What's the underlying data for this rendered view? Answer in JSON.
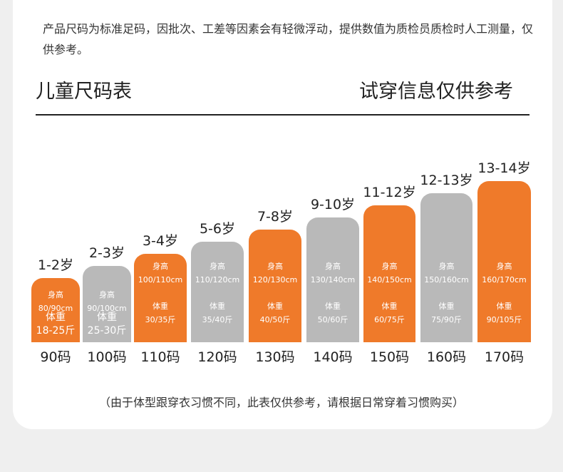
{
  "note": "产品尺码为标准足码，因批次、工差等因素会有轻微浮动，提供数值为质检员质检时人工测量，仅供参考。",
  "title_left": "儿童尺码表",
  "title_right": "试穿信息仅供参考",
  "height_label": "身高",
  "weight_label": "体重",
  "footer": "（由于体型跟穿衣习惯不同，此表仅供参考，请根据日常穿着习惯购买）",
  "colors": {
    "orange": "#ef7a2a",
    "gray": "#b9b9b9"
  },
  "chart_data": {
    "type": "bar",
    "categories": [
      "90码",
      "100码",
      "110码",
      "120码",
      "130码",
      "140码",
      "150码",
      "160码",
      "170码"
    ],
    "ages": [
      "1-2岁",
      "2-3岁",
      "3-4岁",
      "5-6岁",
      "7-8岁",
      "9-10岁",
      "11-12岁",
      "12-13岁",
      "13-14岁"
    ],
    "heights": [
      "80/90cm",
      "90/100cm",
      "100/110cm",
      "110/120cm",
      "120/130cm",
      "130/140cm",
      "140/150cm",
      "150/160cm",
      "160/170cm"
    ],
    "weights": [
      "18-25斤",
      "25-30斤",
      "30/35斤",
      "35/40斤",
      "40/50斤",
      "50/60斤",
      "60/75斤",
      "75/90斤",
      "90/105斤"
    ],
    "values_height_max_cm": [
      90,
      100,
      110,
      120,
      130,
      140,
      150,
      160,
      170
    ],
    "colors": [
      "orange",
      "gray",
      "orange",
      "gray",
      "orange",
      "gray",
      "orange",
      "gray",
      "orange"
    ]
  }
}
